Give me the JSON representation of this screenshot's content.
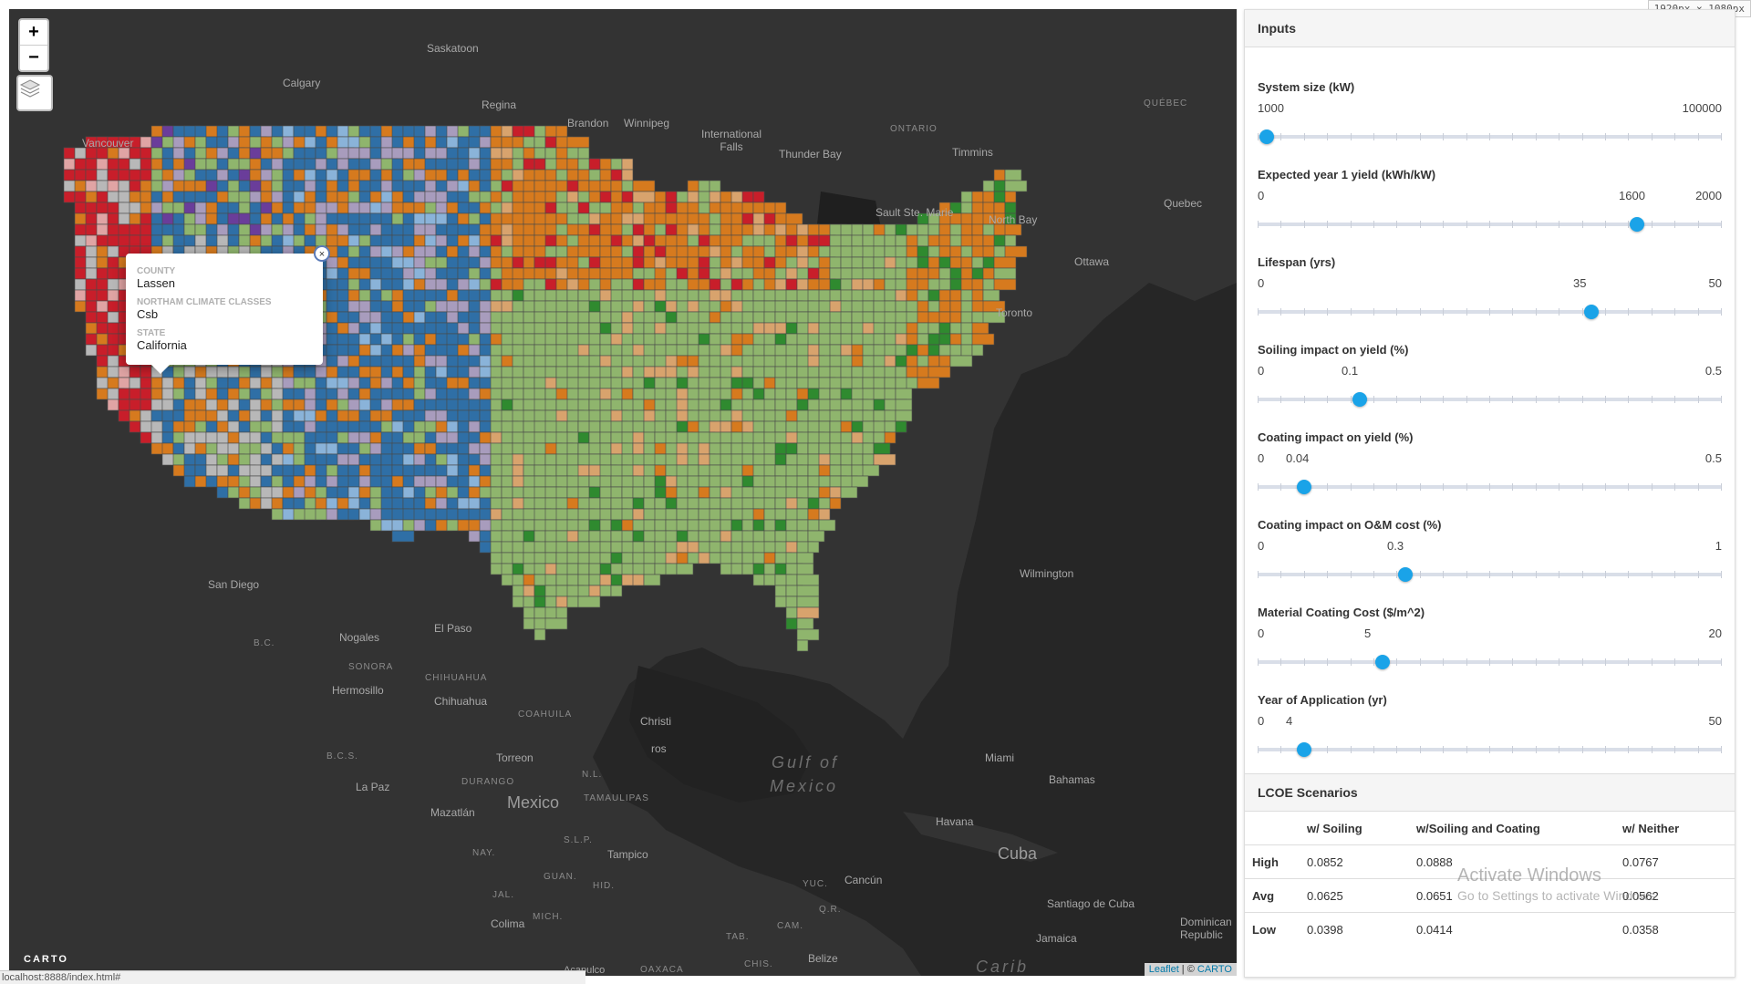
{
  "map": {
    "zoom_in": "+",
    "zoom_out": "−",
    "layers_icon": "layers-icon",
    "labels": {
      "saskatoon": "Saskatoon",
      "calgary": "Calgary",
      "regina": "Regina",
      "brandon": "Brandon",
      "winnipeg": "Winnipeg",
      "intl_falls": "International Falls",
      "thunder_bay": "Thunder Bay",
      "ontario": "ONTARIO",
      "timmins": "Timmins",
      "quebec_region": "QUÉBEC",
      "sault": "Sault Ste. Marie",
      "north_bay": "North Bay",
      "quebec_city": "Quebec",
      "ottawa": "Ottawa",
      "toronto": "Toronto",
      "vancouver": "Vancouver",
      "san_diego": "San Diego",
      "nogales": "Nogales",
      "el_paso": "El Paso",
      "bc": "B.C.",
      "sonora": "SONORA",
      "hermosillo": "Hermosillo",
      "chihuahua_region": "CHIHUAHUA",
      "chihuahua_city": "Chihuahua",
      "coahuila": "COAHUILA",
      "torreon": "Torreon",
      "bcs": "B.C.S.",
      "la_paz": "La Paz",
      "durango": "DURANGO",
      "nl": "N.L.",
      "mexico": "Mexico",
      "tamaulipas": "TAMAULIPAS",
      "mazatlan": "Mazatlán",
      "slp": "S.L.P.",
      "nay": "NAY.",
      "tampico": "Tampico",
      "guan": "GUAN.",
      "hid": "HID.",
      "jal": "JAL.",
      "mich": "MICH.",
      "colima": "Colima",
      "acapulco": "Acapulco",
      "oaxaca": "OAXACA",
      "tab": "TAB.",
      "cam": "CAM.",
      "qr": "Q.R.",
      "yuc": "YUC.",
      "cancun": "Cancún",
      "chis": "CHIS.",
      "belize": "Belize",
      "gulf1": "Gulf of",
      "gulf2": "Mexico",
      "havana": "Havana",
      "cuba": "Cuba",
      "bahamas": "Bahamas",
      "santiago": "Santiago de Cuba",
      "jamaica": "Jamaica",
      "dominican": "Dominican Republic",
      "miami": "Miami",
      "caribbean": "Carib",
      "christi": "Christi",
      "ros": "ros",
      "wilmington": "Wilmington"
    },
    "popup": {
      "close": "×",
      "county_label": "COUNTY",
      "county_value": "Lassen",
      "climate_label": "NORTHAM CLIMATE CLASSES",
      "climate_value": "Csb",
      "state_label": "STATE",
      "state_value": "California"
    },
    "attribution": {
      "leaflet": "Leaflet",
      "sep": " | © ",
      "carto": "CARTO"
    },
    "logo": "CARTO",
    "colors": {
      "green_light": "#8fb56d",
      "orange": "#d67a1e",
      "blue": "#2f6fa6",
      "red": "#c81e2a",
      "lavender": "#a89cbd",
      "gray": "#b8b8b8",
      "pink": "#e0a4a4",
      "green_dark": "#2f8a2f",
      "purple": "#6a3d9a",
      "sky": "#8ab3d9",
      "tan": "#d8a36d"
    }
  },
  "status_url": "localhost:8888/index.html#",
  "device_size": "1920px × 1080px",
  "panel": {
    "inputs_title": "Inputs",
    "sliders": [
      {
        "title": "System size (kW)",
        "min": "1000",
        "max": "100000",
        "value_label": "",
        "value": 1000,
        "lo": 1000,
        "hi": 100000
      },
      {
        "title": "Expected year 1 yield (kWh/kW)",
        "min": "0",
        "max": "2000",
        "value_label": "1600",
        "value": 1600,
        "lo": 0,
        "hi": 2000
      },
      {
        "title": "Lifespan (yrs)",
        "min": "0",
        "max": "50",
        "value_label": "35",
        "value": 35,
        "lo": 0,
        "hi": 50
      },
      {
        "title": "Soiling impact on yield (%)",
        "min": "0",
        "max": "0.5",
        "value_label": "0.1",
        "value": 0.1,
        "lo": 0,
        "hi": 0.5
      },
      {
        "title": "Coating impact on yield (%)",
        "min": "0",
        "max": "0.5",
        "value_label": "0.04",
        "value": 0.04,
        "lo": 0,
        "hi": 0.5
      },
      {
        "title": "Coating impact on O&M cost (%)",
        "min": "0",
        "max": "1",
        "value_label": "0.3",
        "value": 0.3,
        "lo": 0,
        "hi": 1
      },
      {
        "title": "Material Coating Cost ($/m^2)",
        "min": "0",
        "max": "20",
        "value_label": "5",
        "value": 5,
        "lo": 0,
        "hi": 20
      },
      {
        "title": "Year of Application (yr)",
        "min": "0",
        "max": "50",
        "value_label": "4",
        "value": 4,
        "lo": 0,
        "hi": 50
      }
    ],
    "lcoe_title": "LCOE Scenarios",
    "table": {
      "headers": [
        "",
        "w/ Soiling",
        "w/Soiling and Coating",
        "w/ Neither"
      ],
      "rows": [
        {
          "label": "High",
          "values": [
            "0.0852",
            "0.0888",
            "0.0767"
          ]
        },
        {
          "label": "Avg",
          "values": [
            "0.0625",
            "0.0651",
            "0.0562"
          ]
        },
        {
          "label": "Low",
          "values": [
            "0.0398",
            "0.0414",
            "0.0358"
          ]
        }
      ]
    },
    "watermark": {
      "line1": "Activate Windows",
      "line2": "Go to Settings to activate Windows."
    }
  }
}
